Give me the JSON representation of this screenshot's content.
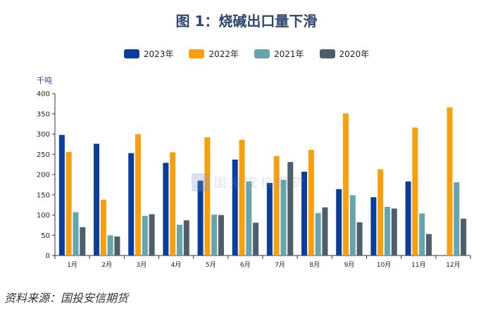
{
  "chart_data": {
    "type": "bar",
    "title": "图 1：烧碱出口量下滑",
    "ylabel": "千吨",
    "xlabel": "",
    "ylim": [
      0,
      400
    ],
    "yticks": [
      0,
      50,
      100,
      150,
      200,
      250,
      300,
      350,
      400
    ],
    "categories": [
      "1月",
      "2月",
      "3月",
      "4月",
      "5月",
      "6月",
      "7月",
      "8月",
      "9月",
      "10月",
      "11月",
      "12月"
    ],
    "series": [
      {
        "name": "2023年",
        "color": "#0a3d9c",
        "values": [
          298,
          276,
          253,
          229,
          185,
          237,
          179,
          207,
          164,
          144,
          183,
          null
        ]
      },
      {
        "name": "2022年",
        "color": "#f7a00f",
        "values": [
          256,
          138,
          300,
          255,
          292,
          286,
          246,
          261,
          351,
          213,
          316,
          366
        ]
      },
      {
        "name": "2021年",
        "color": "#66a5ad",
        "values": [
          107,
          50,
          98,
          76,
          101,
          183,
          187,
          105,
          149,
          120,
          104,
          181
        ]
      },
      {
        "name": "2020年",
        "color": "#4f5e6b",
        "values": [
          70,
          47,
          102,
          87,
          100,
          81,
          231,
          119,
          82,
          116,
          53,
          91
        ]
      }
    ],
    "legend_position": "top-center",
    "grid": false
  },
  "source_text": "资料来源：国投安信期货",
  "watermark": {
    "text": "国投安信期货"
  }
}
